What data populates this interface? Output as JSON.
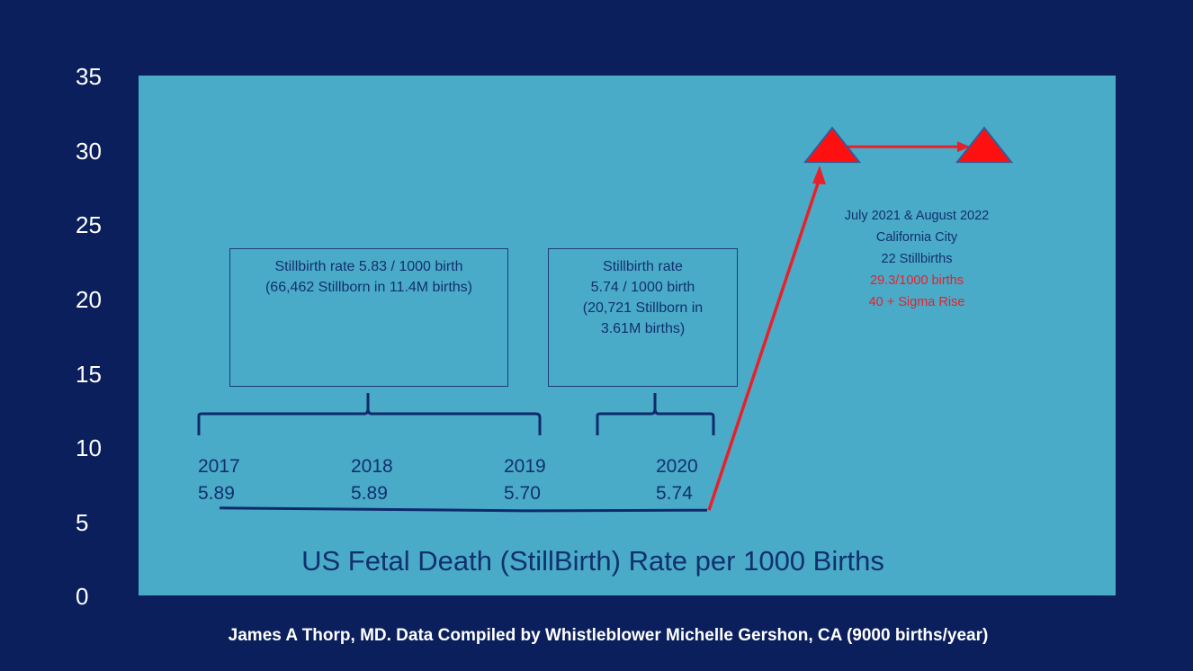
{
  "chart_data": {
    "type": "line",
    "caption": "US Fetal Death (StillBirth) Rate per 1000 Births",
    "ylim": [
      0,
      35
    ],
    "yticks": [
      "35",
      "30",
      "25",
      "20",
      "15",
      "10",
      "5",
      "0"
    ],
    "points": [
      {
        "year": "2017",
        "label": "5.89",
        "value": 5.89
      },
      {
        "year": "2018",
        "label": "5.89",
        "value": 5.89
      },
      {
        "year": "2019",
        "label": "5.70",
        "value": 5.7
      },
      {
        "year": "2020",
        "label": "5.74",
        "value": 5.74
      }
    ],
    "highlight_points": [
      29.3,
      29.3
    ],
    "boxes": [
      {
        "lines": [
          "Stillbirth rate 5.83 / 1000 birth",
          "(66,462 Stillborn in 11.4M births)"
        ]
      },
      {
        "lines": [
          "Stillbirth  rate",
          "5.74 / 1000 birth",
          "(20,721 Stillborn in",
          "3.61M births)"
        ]
      }
    ],
    "annotation": {
      "line1": "July 2021 & August 2022",
      "line2": "California City",
      "line3": "22 Stillbirths",
      "line4": "29.3/1000 births",
      "line5": "40 + Sigma Rise"
    },
    "colors": {
      "background": "#0a1f5c",
      "plot": "#4aabc8",
      "text": "#11306e",
      "line": "#0f2a6b",
      "highlight": "#e8202a"
    }
  },
  "footer": "James A Thorp, MD. Data Compiled by Whistleblower Michelle Gershon,  CA (9000    births/year)"
}
